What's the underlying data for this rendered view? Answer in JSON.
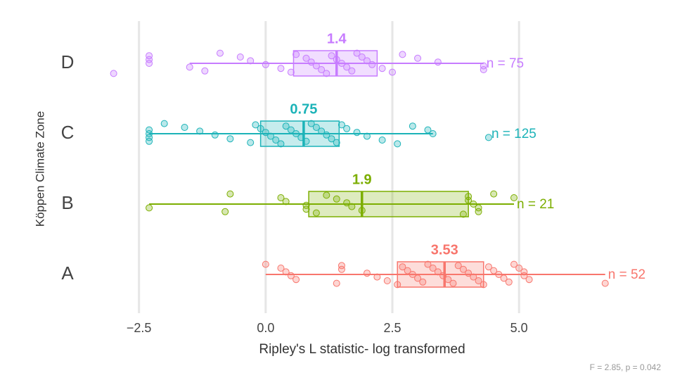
{
  "chart_data": {
    "type": "boxplot",
    "x_label": "Ripley's L statistic- log transformed",
    "y_label": "Köppen Climate Zone",
    "footnote": "F = 2.85, p = 0.042",
    "xlim": [
      -3.3,
      7.8
    ],
    "xticks": [
      {
        "value": -2.5,
        "label": "−2.5"
      },
      {
        "value": 0,
        "label": "0.0"
      },
      2.5,
      {
        "value": 5,
        "label": "5.0"
      }
    ],
    "grid": true,
    "series": [
      {
        "name": "A",
        "color": "#f8766d",
        "low": 0,
        "q1": 2.6,
        "median": 3.53,
        "q3": 4.3,
        "high": 6.7,
        "n_label": "n = 52",
        "points": [
          0.0,
          0.3,
          0.4,
          0.5,
          0.6,
          1.4,
          1.5,
          1.5,
          2.0,
          2.2,
          2.4,
          2.6,
          2.7,
          2.8,
          2.9,
          3.0,
          3.1,
          3.2,
          3.3,
          3.4,
          3.5,
          3.6,
          3.7,
          3.8,
          3.9,
          4.0,
          4.1,
          4.2,
          4.3,
          4.4,
          4.5,
          4.6,
          4.7,
          4.8,
          4.9,
          5.0,
          5.1,
          5.1,
          5.2,
          6.7
        ]
      },
      {
        "name": "B",
        "color": "#7cae00",
        "low": -2.3,
        "q1": 0.85,
        "median": 1.9,
        "q3": 4.0,
        "high": 4.9,
        "n_label": "n = 21",
        "points": [
          -2.3,
          -0.8,
          -0.7,
          0.3,
          0.4,
          0.8,
          0.8,
          1.0,
          1.2,
          1.4,
          1.6,
          1.7,
          1.9,
          3.9,
          4.0,
          4.0,
          4.1,
          4.2,
          4.2,
          4.5,
          4.9
        ]
      },
      {
        "name": "C",
        "color": "#1cb3b8",
        "low": -2.3,
        "q1": -0.1,
        "median": 0.75,
        "q3": 1.45,
        "high": 3.3,
        "n_label": "n = 125",
        "points": [
          -2.3,
          -2.3,
          -2.3,
          -2.3,
          -2.0,
          -1.6,
          -1.3,
          -1.0,
          -0.7,
          -0.3,
          -0.2,
          -0.1,
          0.0,
          0.1,
          0.2,
          0.3,
          0.4,
          0.5,
          0.6,
          0.7,
          0.8,
          0.9,
          1.0,
          1.1,
          1.2,
          1.3,
          1.4,
          1.5,
          1.6,
          1.8,
          2.0,
          2.3,
          2.6,
          2.9,
          3.2,
          3.3,
          4.4
        ]
      },
      {
        "name": "D",
        "color": "#c77cff",
        "low": -1.5,
        "q1": 0.55,
        "median": 1.4,
        "q3": 2.2,
        "high": 4.3,
        "n_label": "n = 75",
        "points": [
          -3.0,
          -2.3,
          -2.3,
          -2.3,
          -1.5,
          -1.2,
          -0.9,
          -0.5,
          -0.3,
          0.0,
          0.3,
          0.5,
          0.6,
          0.8,
          0.9,
          1.0,
          1.1,
          1.2,
          1.3,
          1.4,
          1.5,
          1.6,
          1.7,
          1.8,
          1.9,
          2.0,
          2.1,
          2.3,
          2.5,
          2.7,
          3.0,
          3.4,
          4.3,
          4.3
        ]
      }
    ]
  }
}
